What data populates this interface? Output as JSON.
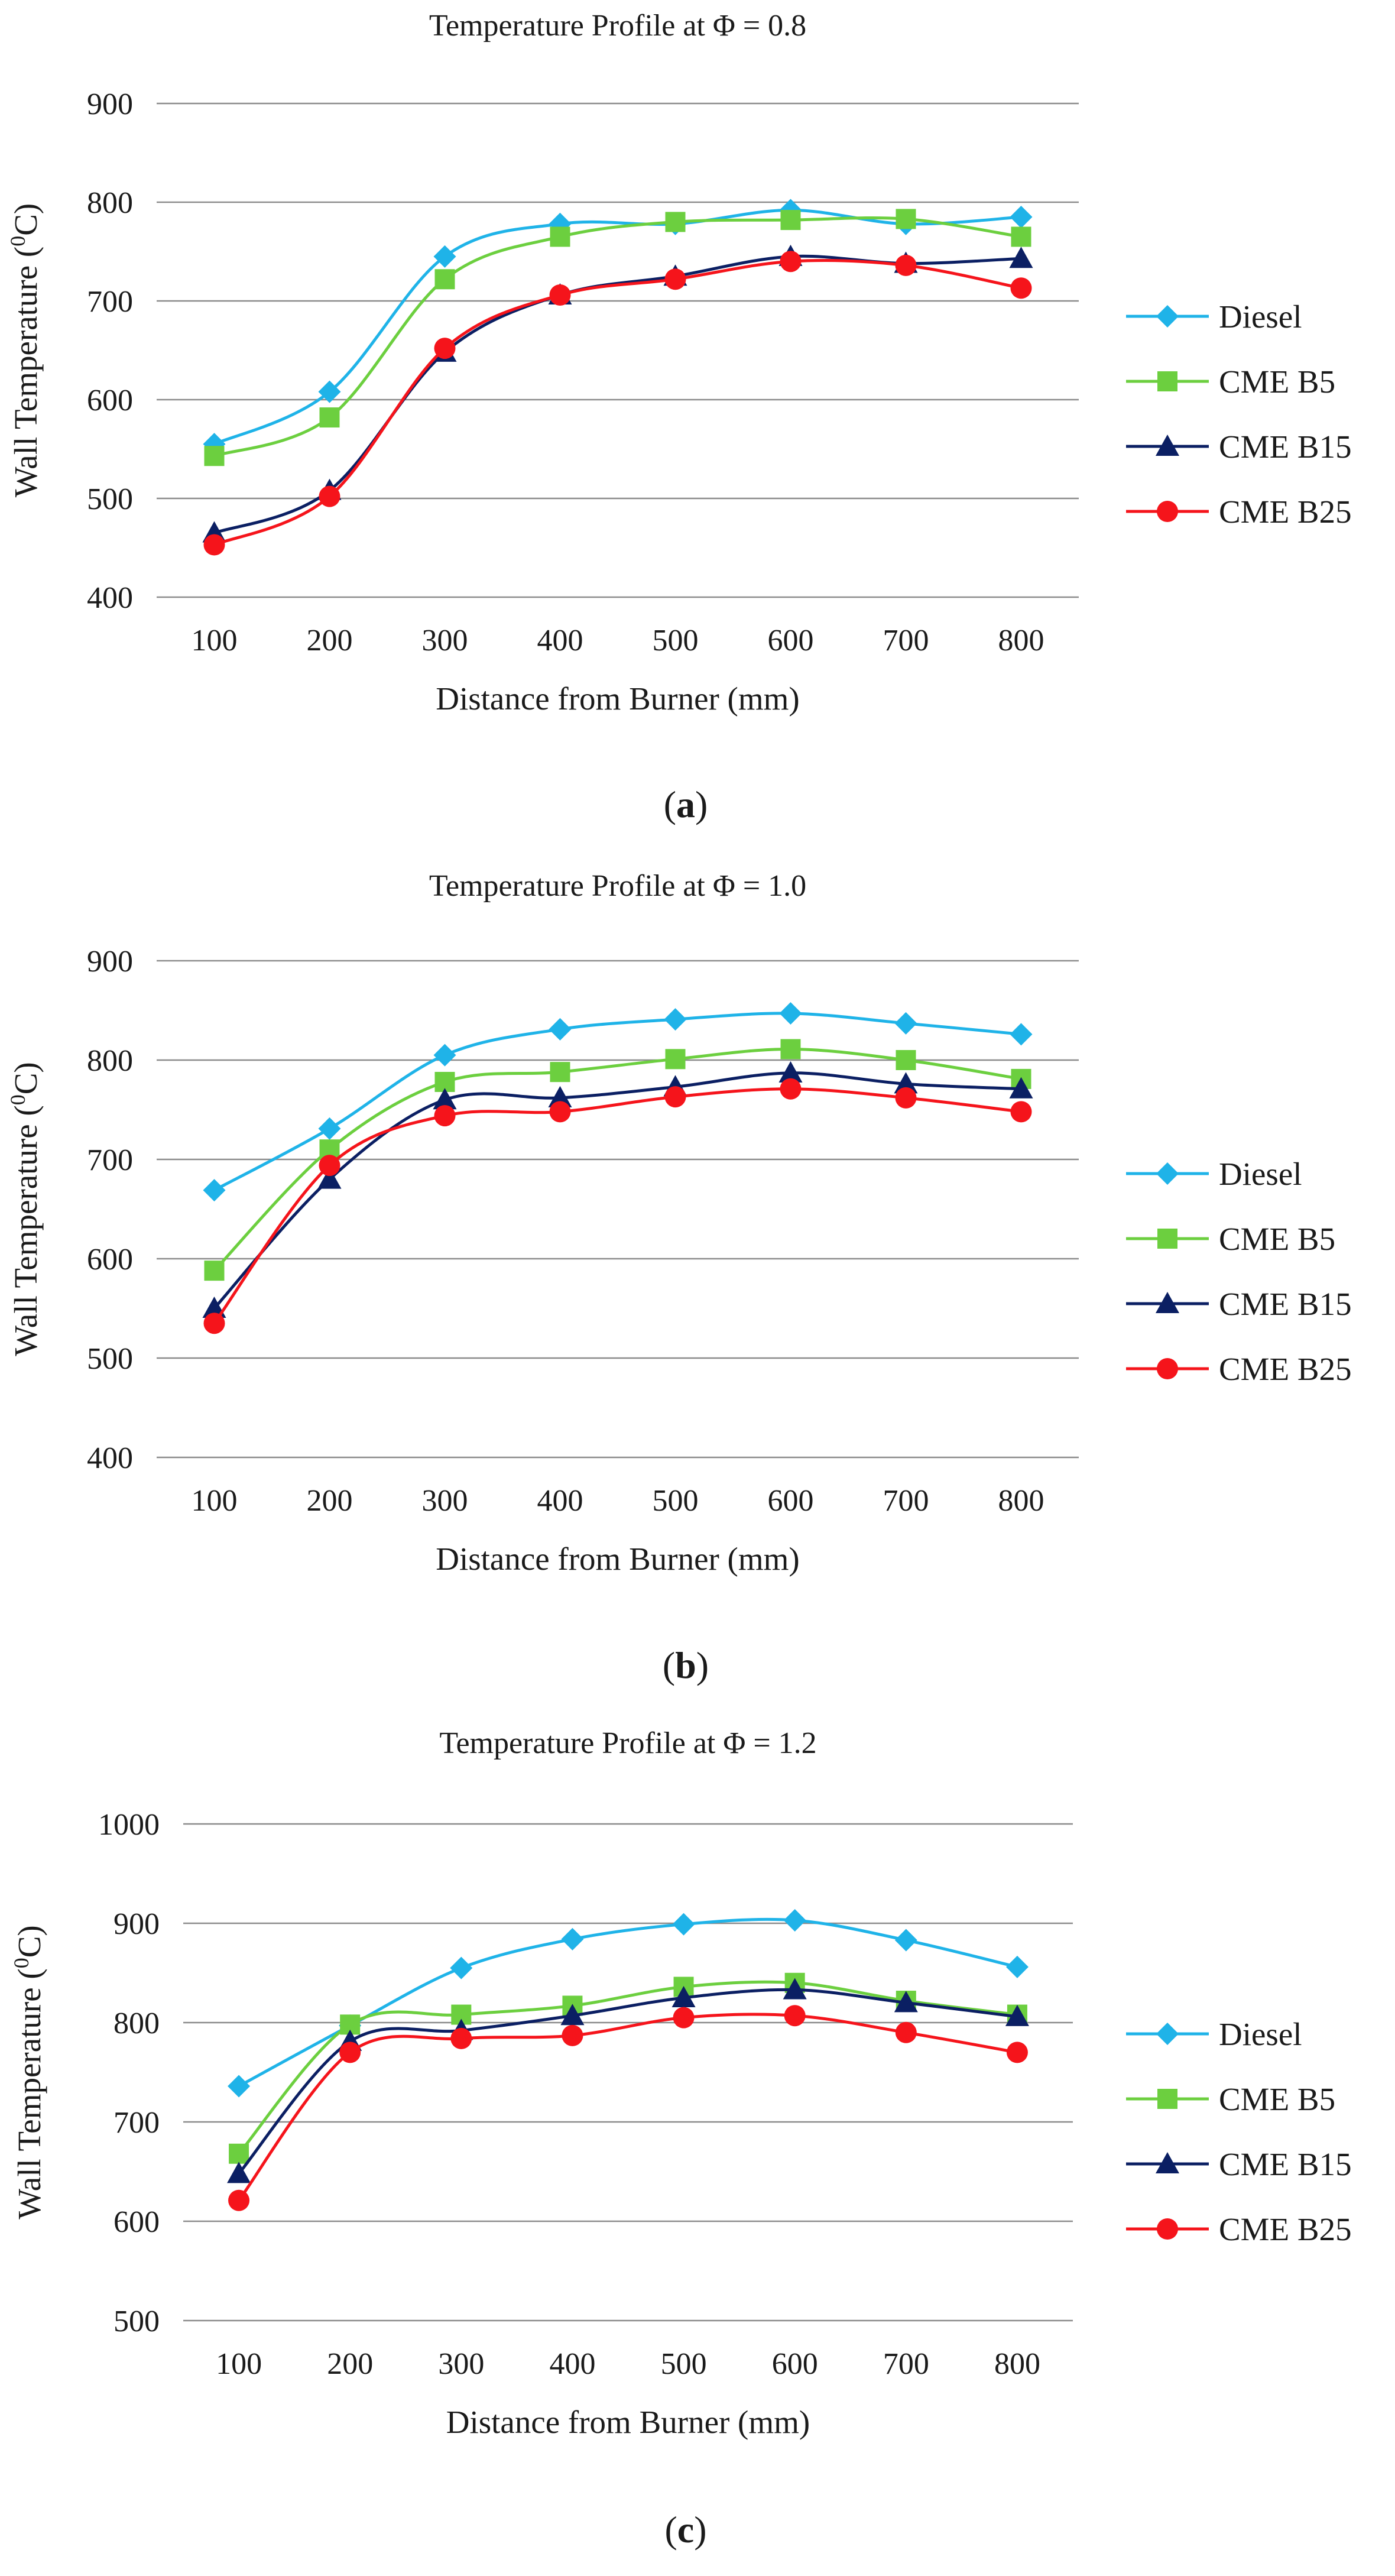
{
  "figure_labels": {
    "panel_markers": [
      {
        "open": "(",
        "letter": "a",
        "close": ")"
      },
      {
        "open": "(",
        "letter": "b",
        "close": ")"
      },
      {
        "open": "(",
        "letter": "c",
        "close": ")"
      }
    ]
  },
  "chart_data": [
    {
      "type": "line",
      "title": "Temperature Profile at Φ = 0.8",
      "xlabel": "Distance from Burner (mm)",
      "ylabel_parts": {
        "before": "Wall Temperature (",
        "sup": "0",
        "after": "C)"
      },
      "categories": [
        100,
        200,
        300,
        400,
        500,
        600,
        700,
        800
      ],
      "ylim": [
        400,
        900
      ],
      "yticks": [
        400,
        500,
        600,
        700,
        800,
        900
      ],
      "grid": true,
      "legend_position": "right",
      "series": [
        {
          "name": "Diesel",
          "color": "#1fb3e8",
          "marker": "diamond",
          "values": [
            555,
            608,
            745,
            778,
            778,
            792,
            778,
            785
          ]
        },
        {
          "name": "CME B5",
          "color": "#6ccf3f",
          "marker": "square",
          "values": [
            543,
            582,
            722,
            765,
            780,
            782,
            783,
            765
          ]
        },
        {
          "name": "CME B15",
          "color": "#0b1f63",
          "marker": "triangle",
          "values": [
            465,
            508,
            648,
            706,
            725,
            745,
            738,
            743
          ]
        },
        {
          "name": "CME B25",
          "color": "#f5141b",
          "marker": "circle",
          "values": [
            453,
            502,
            652,
            706,
            722,
            740,
            736,
            713
          ]
        }
      ]
    },
    {
      "type": "line",
      "title": "Temperature Profile at Φ = 1.0",
      "xlabel": "Distance from Burner (mm)",
      "ylabel_parts": {
        "before": "Wall Temperature (",
        "sup": "0",
        "after": "C)"
      },
      "categories": [
        100,
        200,
        300,
        400,
        500,
        600,
        700,
        800
      ],
      "ylim": [
        400,
        900
      ],
      "yticks": [
        400,
        500,
        600,
        700,
        800,
        900
      ],
      "grid": true,
      "legend_position": "right",
      "series": [
        {
          "name": "Diesel",
          "color": "#1fb3e8",
          "marker": "diamond",
          "values": [
            669,
            731,
            805,
            831,
            841,
            847,
            837,
            826
          ]
        },
        {
          "name": "CME B5",
          "color": "#6ccf3f",
          "marker": "square",
          "values": [
            588,
            710,
            778,
            788,
            801,
            811,
            800,
            781
          ]
        },
        {
          "name": "CME B15",
          "color": "#0b1f63",
          "marker": "triangle",
          "values": [
            550,
            680,
            760,
            762,
            773,
            787,
            776,
            771
          ]
        },
        {
          "name": "CME B25",
          "color": "#f5141b",
          "marker": "circle",
          "values": [
            535,
            694,
            744,
            748,
            763,
            771,
            762,
            748
          ]
        }
      ]
    },
    {
      "type": "line",
      "title": "Temperature Profile at Φ = 1.2",
      "xlabel": "Distance from Burner (mm)",
      "ylabel_parts": {
        "before": "Wall Temperature (",
        "sup": "0",
        "after": "C)"
      },
      "categories": [
        100,
        200,
        300,
        400,
        500,
        600,
        700,
        800
      ],
      "ylim": [
        500,
        1000
      ],
      "yticks": [
        500,
        600,
        700,
        800,
        900,
        1000
      ],
      "grid": true,
      "legend_position": "right",
      "series": [
        {
          "name": "Diesel",
          "color": "#1fb3e8",
          "marker": "diamond",
          "values": [
            736,
            797,
            855,
            884,
            899,
            903,
            883,
            856
          ]
        },
        {
          "name": "CME B5",
          "color": "#6ccf3f",
          "marker": "square",
          "values": [
            668,
            798,
            808,
            817,
            836,
            840,
            822,
            808
          ]
        },
        {
          "name": "CME B15",
          "color": "#0b1f63",
          "marker": "triangle",
          "values": [
            648,
            781,
            792,
            807,
            825,
            833,
            820,
            806
          ]
        },
        {
          "name": "CME B25",
          "color": "#f5141b",
          "marker": "circle",
          "values": [
            621,
            770,
            784,
            787,
            805,
            807,
            790,
            770
          ]
        }
      ]
    }
  ]
}
